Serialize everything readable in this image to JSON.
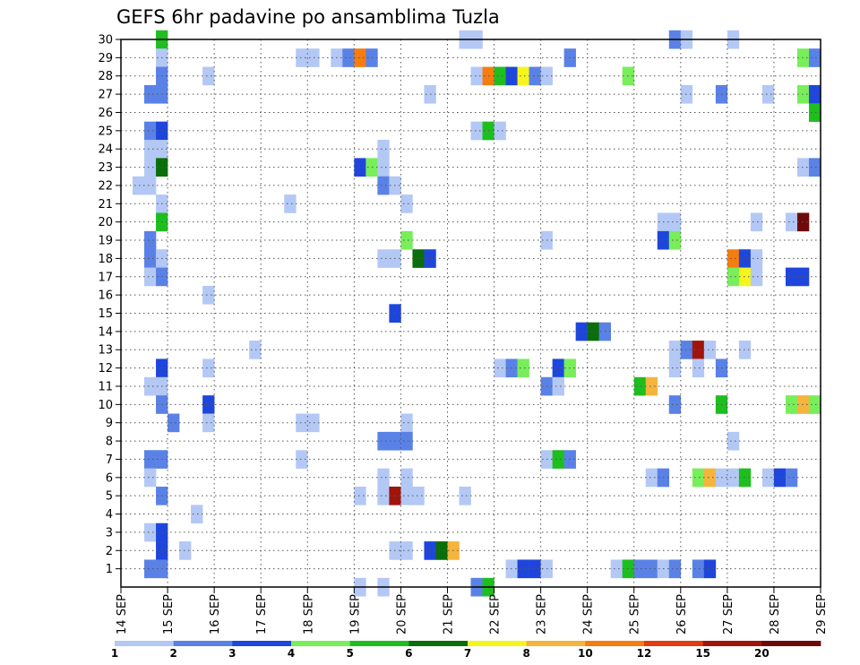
{
  "chart_data": {
    "type": "heatmap",
    "title": "GEFS 6hr padavine po ansamblima Tuzla",
    "xlabel": "",
    "ylabel": "",
    "x_tick_labels": [
      "14 SEP",
      "15 SEP",
      "16 SEP",
      "17 SEP",
      "18 SEP",
      "19 SEP",
      "20 SEP",
      "21 SEP",
      "22 SEP",
      "23 SEP",
      "24 SEP",
      "25 SEP",
      "26 SEP",
      "27 SEP",
      "28 SEP",
      "29 SEP"
    ],
    "y_tick_labels": [
      "1",
      "2",
      "3",
      "4",
      "5",
      "6",
      "7",
      "8",
      "9",
      "10",
      "11",
      "12",
      "13",
      "14",
      "15",
      "16",
      "17",
      "18",
      "19",
      "20",
      "21",
      "22",
      "23",
      "24",
      "25",
      "26",
      "27",
      "28",
      "29",
      "30"
    ],
    "xlim": [
      0,
      15
    ],
    "ylim": [
      0,
      30
    ],
    "grid": true,
    "x_step": 0.25,
    "legend": {
      "levels": [
        "1",
        "2",
        "3",
        "4",
        "5",
        "6",
        "7",
        "8",
        "10",
        "12",
        "15",
        "20"
      ],
      "colors": [
        "#b4c8f5",
        "#5a82e6",
        "#1e46dc",
        "#78ee5a",
        "#1ebe1e",
        "#0a6e0a",
        "#f5f51e",
        "#f5b43c",
        "#f57d0f",
        "#e13c0f",
        "#a0140a",
        "#6e0a0a"
      ]
    },
    "cells": [
      [
        0.75,
        30,
        4
      ],
      [
        7.25,
        30,
        0
      ],
      [
        7.5,
        30,
        0
      ],
      [
        11.75,
        30,
        1
      ],
      [
        12,
        30,
        0
      ],
      [
        13,
        30,
        0
      ],
      [
        0.75,
        29,
        0
      ],
      [
        3.75,
        29,
        0
      ],
      [
        4,
        29,
        0
      ],
      [
        4.5,
        29,
        0
      ],
      [
        4.75,
        29,
        1
      ],
      [
        5,
        29,
        8
      ],
      [
        5.25,
        29,
        1
      ],
      [
        9.5,
        29,
        1
      ],
      [
        14.5,
        29,
        3
      ],
      [
        14.75,
        29,
        1
      ],
      [
        0.75,
        28,
        1
      ],
      [
        1.75,
        28,
        0
      ],
      [
        7.5,
        28,
        0
      ],
      [
        7.75,
        28,
        8
      ],
      [
        8,
        28,
        4
      ],
      [
        8.25,
        28,
        2
      ],
      [
        8.5,
        28,
        6
      ],
      [
        8.75,
        28,
        1
      ],
      [
        9,
        28,
        0
      ],
      [
        10.75,
        28,
        3
      ],
      [
        0.5,
        27,
        1
      ],
      [
        0.75,
        27,
        1
      ],
      [
        6.5,
        27,
        0
      ],
      [
        12,
        27,
        0
      ],
      [
        12.75,
        27,
        1
      ],
      [
        13.75,
        27,
        0
      ],
      [
        14.5,
        27,
        3
      ],
      [
        14.75,
        27,
        2
      ],
      [
        14.75,
        26,
        4
      ],
      [
        0.5,
        25,
        1
      ],
      [
        0.75,
        25,
        2
      ],
      [
        7.5,
        25,
        0
      ],
      [
        7.75,
        25,
        4
      ],
      [
        8,
        25,
        0
      ],
      [
        0.5,
        24,
        0
      ],
      [
        0.75,
        24,
        0
      ],
      [
        5.5,
        24,
        0
      ],
      [
        0.5,
        23,
        0
      ],
      [
        0.75,
        23,
        5
      ],
      [
        5,
        23,
        2
      ],
      [
        5.25,
        23,
        3
      ],
      [
        5.5,
        23,
        0
      ],
      [
        14.5,
        23,
        0
      ],
      [
        14.75,
        23,
        1
      ],
      [
        0.25,
        22,
        0
      ],
      [
        0.5,
        22,
        0
      ],
      [
        5.5,
        22,
        1
      ],
      [
        5.75,
        22,
        0
      ],
      [
        0.75,
        21,
        0
      ],
      [
        3.5,
        21,
        0
      ],
      [
        6,
        21,
        0
      ],
      [
        0.75,
        20,
        4
      ],
      [
        11.5,
        20,
        0
      ],
      [
        11.75,
        20,
        0
      ],
      [
        13.5,
        20,
        0
      ],
      [
        14.25,
        20,
        0
      ],
      [
        14.5,
        20,
        11
      ],
      [
        0.5,
        19,
        1
      ],
      [
        6,
        19,
        3
      ],
      [
        9,
        19,
        0
      ],
      [
        11.5,
        19,
        2
      ],
      [
        11.75,
        19,
        3
      ],
      [
        0.5,
        18,
        1
      ],
      [
        0.75,
        18,
        0
      ],
      [
        5.5,
        18,
        0
      ],
      [
        5.75,
        18,
        0
      ],
      [
        6.25,
        18,
        5
      ],
      [
        6.5,
        18,
        2
      ],
      [
        13,
        18,
        8
      ],
      [
        13.25,
        18,
        2
      ],
      [
        13.5,
        18,
        0
      ],
      [
        0.5,
        17,
        0
      ],
      [
        0.75,
        17,
        1
      ],
      [
        13,
        17,
        3
      ],
      [
        13.25,
        17,
        6
      ],
      [
        13.5,
        17,
        0
      ],
      [
        14.25,
        17,
        2
      ],
      [
        14.5,
        17,
        2
      ],
      [
        1.75,
        16,
        0
      ],
      [
        5.75,
        15,
        2
      ],
      [
        9.75,
        14,
        2
      ],
      [
        10,
        14,
        5
      ],
      [
        10.25,
        14,
        1
      ],
      [
        2.75,
        13,
        0
      ],
      [
        11.75,
        13,
        0
      ],
      [
        12,
        13,
        1
      ],
      [
        12.25,
        13,
        10
      ],
      [
        12.5,
        13,
        0
      ],
      [
        13.25,
        13,
        0
      ],
      [
        0.75,
        12,
        2
      ],
      [
        1.75,
        12,
        0
      ],
      [
        8,
        12,
        0
      ],
      [
        8.25,
        12,
        1
      ],
      [
        8.5,
        12,
        3
      ],
      [
        9.25,
        12,
        2
      ],
      [
        9.5,
        12,
        3
      ],
      [
        11.75,
        12,
        0
      ],
      [
        12.25,
        12,
        0
      ],
      [
        12.75,
        12,
        1
      ],
      [
        0.5,
        11,
        0
      ],
      [
        0.75,
        11,
        0
      ],
      [
        9,
        11,
        1
      ],
      [
        9.25,
        11,
        0
      ],
      [
        11,
        11,
        4
      ],
      [
        11.25,
        11,
        7
      ],
      [
        0.75,
        10,
        1
      ],
      [
        1.75,
        10,
        2
      ],
      [
        11.75,
        10,
        1
      ],
      [
        12.75,
        10,
        4
      ],
      [
        14.25,
        10,
        3
      ],
      [
        14.5,
        10,
        7
      ],
      [
        14.75,
        10,
        3
      ],
      [
        1,
        9,
        1
      ],
      [
        1.75,
        9,
        0
      ],
      [
        3.75,
        9,
        0
      ],
      [
        4,
        9,
        0
      ],
      [
        6,
        9,
        0
      ],
      [
        5.5,
        8,
        1
      ],
      [
        5.75,
        8,
        1
      ],
      [
        6,
        8,
        1
      ],
      [
        13,
        8,
        0
      ],
      [
        0.5,
        7,
        1
      ],
      [
        0.75,
        7,
        1
      ],
      [
        3.75,
        7,
        0
      ],
      [
        9,
        7,
        0
      ],
      [
        9.25,
        7,
        4
      ],
      [
        9.5,
        7,
        1
      ],
      [
        0.5,
        6,
        0
      ],
      [
        5.5,
        6,
        0
      ],
      [
        6,
        6,
        0
      ],
      [
        11.25,
        6,
        0
      ],
      [
        11.5,
        6,
        1
      ],
      [
        12.25,
        6,
        3
      ],
      [
        12.5,
        6,
        7
      ],
      [
        12.75,
        6,
        0
      ],
      [
        13,
        6,
        0
      ],
      [
        13.25,
        6,
        4
      ],
      [
        13.75,
        6,
        0
      ],
      [
        14,
        6,
        2
      ],
      [
        14.25,
        6,
        1
      ],
      [
        0.75,
        5,
        1
      ],
      [
        5,
        5,
        0
      ],
      [
        5.5,
        5,
        0
      ],
      [
        5.75,
        5,
        10
      ],
      [
        6,
        5,
        0
      ],
      [
        6.25,
        5,
        0
      ],
      [
        7.25,
        5,
        0
      ],
      [
        1.5,
        4,
        0
      ],
      [
        0.5,
        3,
        0
      ],
      [
        0.75,
        3,
        2
      ],
      [
        0.75,
        2,
        2
      ],
      [
        1.25,
        2,
        0
      ],
      [
        5.75,
        2,
        0
      ],
      [
        6,
        2,
        0
      ],
      [
        6.5,
        2,
        2
      ],
      [
        6.75,
        2,
        5
      ],
      [
        7,
        2,
        7
      ],
      [
        0.5,
        1,
        1
      ],
      [
        0.75,
        1,
        1
      ],
      [
        8.25,
        1,
        0
      ],
      [
        8.5,
        1,
        2
      ],
      [
        8.75,
        1,
        2
      ],
      [
        9,
        1,
        0
      ],
      [
        10.5,
        1,
        0
      ],
      [
        10.75,
        1,
        4
      ],
      [
        11,
        1,
        1
      ],
      [
        11.25,
        1,
        1
      ],
      [
        11.5,
        1,
        0
      ],
      [
        11.75,
        1,
        1
      ],
      [
        12.25,
        1,
        1
      ],
      [
        12.5,
        1,
        2
      ],
      [
        5,
        0,
        0
      ],
      [
        5.5,
        0,
        0
      ],
      [
        7.5,
        0,
        1
      ],
      [
        7.75,
        0,
        4
      ]
    ]
  }
}
